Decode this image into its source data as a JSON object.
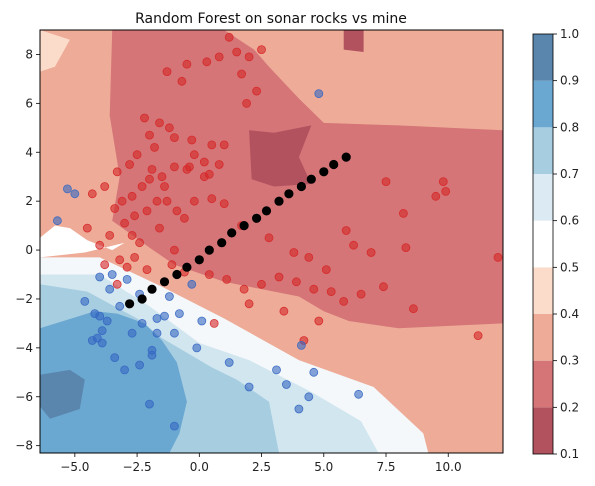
{
  "chart_data": {
    "type": "scatter",
    "title": "Random Forest on sonar rocks vs mine",
    "xlabel": "",
    "ylabel": "",
    "xlim": [
      -6.4,
      12.2
    ],
    "ylim": [
      -8.3,
      9.0
    ],
    "x_ticks": [
      "−5.0",
      "−2.5",
      "0.0",
      "2.5",
      "5.0",
      "7.5",
      "10.0"
    ],
    "x_tick_values": [
      -5,
      -2.5,
      0,
      2.5,
      5,
      7.5,
      10
    ],
    "y_ticks": [
      "−8",
      "−6",
      "−4",
      "−2",
      "0",
      "2",
      "4",
      "6",
      "8"
    ],
    "y_tick_values": [
      -8,
      -6,
      -4,
      -2,
      0,
      2,
      4,
      6,
      8
    ],
    "colorbar": {
      "ticks": [
        "0.1",
        "0.2",
        "0.3",
        "0.4",
        "0.5",
        "0.6",
        "0.7",
        "0.8",
        "0.9",
        "1.0"
      ],
      "levels": [
        0.1,
        0.2,
        0.3,
        0.4,
        0.5,
        0.6,
        0.7,
        0.8,
        0.9,
        1.0
      ],
      "colors": [
        "#b2525f",
        "#d57577",
        "#eeac98",
        "#fbdccb",
        "#ffffff",
        "#dcebf3",
        "#a7cde1",
        "#6aa7d1",
        "#5a86ad"
      ]
    },
    "decision_regions": [
      {
        "level": 0.25,
        "color": "#d57577",
        "points": [
          [
            -3.5,
            9
          ],
          [
            1,
            9
          ],
          [
            2.2,
            8.2
          ],
          [
            2.8,
            7.5
          ],
          [
            4,
            6.2
          ],
          [
            5,
            5.2
          ],
          [
            8,
            5.1
          ],
          [
            12.2,
            4.9
          ],
          [
            12.2,
            -3.0
          ],
          [
            8,
            -3.2
          ],
          [
            6,
            -2.9
          ],
          [
            5,
            -2.5
          ],
          [
            4,
            -1.9
          ],
          [
            1,
            -1.3
          ],
          [
            -1,
            -0.6
          ],
          [
            -2,
            0.1
          ],
          [
            -3.5,
            1.2
          ],
          [
            -3.2,
            3
          ],
          [
            -3.6,
            5.5
          ]
        ]
      },
      {
        "level": 0.15,
        "color": "#b2525f",
        "points": [
          [
            2,
            4.9
          ],
          [
            3,
            4.8
          ],
          [
            4.5,
            5.1
          ],
          [
            4.0,
            3.8
          ],
          [
            4.5,
            2.7
          ],
          [
            3.0,
            2.6
          ],
          [
            2.1,
            2.9
          ]
        ]
      },
      {
        "level": 0.15,
        "color": "#b2525f",
        "points": [
          [
            5.8,
            9
          ],
          [
            6.6,
            9
          ],
          [
            6.6,
            8.1
          ],
          [
            5.8,
            8.2
          ]
        ]
      },
      {
        "level": 0.55,
        "color": "#f4f8fa",
        "points": [
          [
            -6.4,
            -0.3
          ],
          [
            -4,
            -0.3
          ],
          [
            -1.5,
            -1.5
          ],
          [
            1,
            -2.8
          ],
          [
            4,
            -4.5
          ],
          [
            7,
            -5.6
          ],
          [
            9,
            -7.5
          ],
          [
            9.2,
            -8.3
          ],
          [
            -6.4,
            -8.3
          ]
        ]
      },
      {
        "level": 0.65,
        "color": "#d2e6f0",
        "points": [
          [
            -6.4,
            -1.0
          ],
          [
            -4,
            -1.0
          ],
          [
            -2,
            -2.3
          ],
          [
            0,
            -3.8
          ],
          [
            2,
            -4.5
          ],
          [
            4.5,
            -5.8
          ],
          [
            6.5,
            -7
          ],
          [
            7.2,
            -8.3
          ],
          [
            -6.4,
            -8.3
          ]
        ]
      },
      {
        "level": 0.75,
        "color": "#a7cde1",
        "points": [
          [
            -6.4,
            -1.4
          ],
          [
            -4.5,
            -1.7
          ],
          [
            -2.5,
            -2.8
          ],
          [
            -1.5,
            -3.6
          ],
          [
            0.5,
            -4.8
          ],
          [
            1.5,
            -5.3
          ],
          [
            2.8,
            -6.2
          ],
          [
            3.2,
            -8.3
          ],
          [
            -6.4,
            -8.3
          ]
        ]
      },
      {
        "level": 0.85,
        "color": "#6aa7d1",
        "points": [
          [
            -6.4,
            -3.2
          ],
          [
            -4.2,
            -2.5
          ],
          [
            -3.3,
            -2.6
          ],
          [
            -2.2,
            -3.0
          ],
          [
            -1.5,
            -3.7
          ],
          [
            -0.9,
            -4.6
          ],
          [
            -0.5,
            -6.2
          ],
          [
            -0.8,
            -7.5
          ],
          [
            -1.2,
            -8.3
          ],
          [
            -6.4,
            -8.3
          ]
        ]
      },
      {
        "level": 0.95,
        "color": "#5a86ad",
        "points": [
          [
            -6.4,
            -5.1
          ],
          [
            -5.2,
            -4.9
          ],
          [
            -4.6,
            -5.3
          ],
          [
            -4.8,
            -6.5
          ],
          [
            -6.0,
            -6.9
          ],
          [
            -6.4,
            -6.4
          ]
        ]
      },
      {
        "level": 0.45,
        "color": "#ffffff",
        "points": [
          [
            -6.4,
            0.5
          ],
          [
            -5.8,
            1.0
          ],
          [
            -5.2,
            0.9
          ],
          [
            -4.5,
            0.4
          ],
          [
            -3.5,
            0.0
          ],
          [
            -3,
            0.3
          ],
          [
            -4.6,
            -0.1
          ],
          [
            -6.4,
            -0.3
          ]
        ]
      },
      {
        "level": 0.35,
        "color": "#fbdccb",
        "points": [
          [
            -6.4,
            9
          ],
          [
            -5.2,
            8.6
          ],
          [
            -5.8,
            7.5
          ],
          [
            -6.4,
            7.3
          ]
        ]
      }
    ],
    "series": [
      {
        "color": "#d62728",
        "points": [
          [
            1.2,
            8.7
          ],
          [
            1.5,
            8.1
          ],
          [
            0.3,
            7.7
          ],
          [
            -0.5,
            7.6
          ],
          [
            2.0,
            7.9
          ],
          [
            0.8,
            7.9
          ],
          [
            2.5,
            8.2
          ],
          [
            -1.3,
            7.3
          ],
          [
            -0.7,
            6.9
          ],
          [
            1.7,
            7.2
          ],
          [
            1.9,
            6.0
          ],
          [
            2.3,
            6.5
          ],
          [
            -2.2,
            5.4
          ],
          [
            -1.6,
            5.2
          ],
          [
            -1.2,
            5.0
          ],
          [
            -1.0,
            4.6
          ],
          [
            -2.0,
            4.7
          ],
          [
            -1.8,
            4.2
          ],
          [
            -2.5,
            3.9
          ],
          [
            -2.8,
            3.5
          ],
          [
            -3.3,
            3.2
          ],
          [
            -3.8,
            2.6
          ],
          [
            -2.3,
            2.6
          ],
          [
            -2.0,
            2.9
          ],
          [
            -1.5,
            3.0
          ],
          [
            -1.0,
            3.4
          ],
          [
            -0.5,
            3.3
          ],
          [
            0.2,
            3.6
          ],
          [
            0.4,
            3.1
          ],
          [
            0.5,
            2.1
          ],
          [
            1.0,
            1.9
          ],
          [
            -0.2,
            2.0
          ],
          [
            -1.4,
            2.6
          ],
          [
            -1.7,
            2.0
          ],
          [
            -2.1,
            1.6
          ],
          [
            -2.6,
            1.4
          ],
          [
            -3.0,
            1.1
          ],
          [
            -3.6,
            0.6
          ],
          [
            -4.0,
            0.2
          ],
          [
            -3.8,
            -0.6
          ],
          [
            -2.9,
            -0.7
          ],
          [
            -2.1,
            -0.8
          ],
          [
            -1.1,
            -0.6
          ],
          [
            -0.6,
            -0.9
          ],
          [
            0.4,
            -1.0
          ],
          [
            1.1,
            -1.2
          ],
          [
            1.8,
            -1.6
          ],
          [
            2.5,
            -1.4
          ],
          [
            3.2,
            -1.1
          ],
          [
            3.9,
            -1.3
          ],
          [
            4.6,
            -1.6
          ],
          [
            5.3,
            -1.7
          ],
          [
            5.8,
            -2.1
          ],
          [
            4.4,
            -0.3
          ],
          [
            2.8,
            0.5
          ],
          [
            1.7,
            1.0
          ],
          [
            6.2,
            0.2
          ],
          [
            5.9,
            0.8
          ],
          [
            6.9,
            -0.1
          ],
          [
            7.4,
            -1.5
          ],
          [
            8.3,
            0.1
          ],
          [
            8.6,
            -2.4
          ],
          [
            8.2,
            1.5
          ],
          [
            9.5,
            2.2
          ],
          [
            9.8,
            2.8
          ],
          [
            9.9,
            2.4
          ],
          [
            7.5,
            2.8
          ],
          [
            11.2,
            -3.5
          ],
          [
            12.0,
            -0.3
          ],
          [
            0.6,
            -3.0
          ],
          [
            -0.9,
            1.6
          ],
          [
            -3.4,
            1.7
          ],
          [
            -4.3,
            2.3
          ],
          [
            -2.7,
            0.6
          ],
          [
            -1.9,
            3.3
          ],
          [
            0.2,
            3.0
          ],
          [
            0.8,
            3.5
          ],
          [
            0.5,
            4.3
          ],
          [
            -0.4,
            3.4
          ],
          [
            1.0,
            4.3
          ],
          [
            -0.3,
            4.5
          ],
          [
            -0.2,
            3.9
          ],
          [
            -2.7,
            2.2
          ],
          [
            -3.1,
            2.0
          ],
          [
            -1.6,
            0.9
          ],
          [
            -0.6,
            1.3
          ],
          [
            -1.3,
            2.0
          ],
          [
            -3.2,
            -0.4
          ],
          [
            -2.6,
            -0.3
          ],
          [
            -1.0,
            0.0
          ],
          [
            -2.4,
            0.3
          ],
          [
            3.8,
            -0.1
          ],
          [
            5.1,
            -0.8
          ],
          [
            6.5,
            -1.8
          ],
          [
            4.8,
            -2.9
          ],
          [
            4.2,
            -3.7
          ],
          [
            2.0,
            -2.2
          ],
          [
            3.4,
            -2.5
          ],
          [
            -4.5,
            0.9
          ],
          [
            -3.3,
            -1.4
          ]
        ]
      },
      {
        "color": "#3567c2",
        "points": [
          [
            -5.3,
            2.5
          ],
          [
            -5.0,
            2.3
          ],
          [
            -5.7,
            1.2
          ],
          [
            -4.6,
            -2.1
          ],
          [
            -4.2,
            -2.6
          ],
          [
            -4.0,
            -2.7
          ],
          [
            -3.7,
            -2.9
          ],
          [
            -3.9,
            -3.3
          ],
          [
            -4.1,
            -3.6
          ],
          [
            -4.3,
            -3.7
          ],
          [
            -3.9,
            -3.8
          ],
          [
            -3.4,
            -4.4
          ],
          [
            -3.0,
            -4.9
          ],
          [
            -2.4,
            -4.7
          ],
          [
            -1.9,
            -4.1
          ],
          [
            -1.9,
            -4.3
          ],
          [
            -2.3,
            -3.0
          ],
          [
            -2.7,
            -3.4
          ],
          [
            -1.7,
            -3.4
          ],
          [
            -1.4,
            -2.7
          ],
          [
            -2.0,
            -6.3
          ],
          [
            -1.0,
            -7.2
          ],
          [
            -0.1,
            -4.0
          ],
          [
            -1.0,
            -3.4
          ],
          [
            1.2,
            -4.6
          ],
          [
            2.0,
            -5.6
          ],
          [
            3.1,
            -4.9
          ],
          [
            3.5,
            -5.5
          ],
          [
            4.0,
            -6.5
          ],
          [
            4.4,
            -6.0
          ],
          [
            4.6,
            -5.0
          ],
          [
            6.4,
            -5.9
          ],
          [
            -3.2,
            -2.3
          ],
          [
            -2.4,
            -1.8
          ],
          [
            -1.2,
            -1.9
          ],
          [
            -0.8,
            -2.6
          ],
          [
            0.1,
            -2.9
          ],
          [
            -3.6,
            -1.6
          ],
          [
            -4.0,
            -1.1
          ],
          [
            -0.3,
            -1.4
          ],
          [
            4.1,
            -3.9
          ],
          [
            4.8,
            6.4
          ],
          [
            -2.9,
            -1.2
          ],
          [
            -3.5,
            -1.0
          ],
          [
            -1.7,
            -2.8
          ]
        ]
      },
      {
        "color": "#000000",
        "points": [
          [
            -2.8,
            -2.2
          ],
          [
            -2.3,
            -2.0
          ],
          [
            -1.9,
            -1.6
          ],
          [
            -1.4,
            -1.3
          ],
          [
            -0.9,
            -1.0
          ],
          [
            -0.5,
            -0.7
          ],
          [
            0.0,
            -0.4
          ],
          [
            0.4,
            0.0
          ],
          [
            0.9,
            0.3
          ],
          [
            1.3,
            0.7
          ],
          [
            1.8,
            1.0
          ],
          [
            2.3,
            1.3
          ],
          [
            2.7,
            1.6
          ],
          [
            3.2,
            2.0
          ],
          [
            3.6,
            2.3
          ],
          [
            4.1,
            2.6
          ],
          [
            4.5,
            2.9
          ],
          [
            5.0,
            3.2
          ],
          [
            5.4,
            3.5
          ],
          [
            5.9,
            3.8
          ]
        ]
      }
    ]
  }
}
